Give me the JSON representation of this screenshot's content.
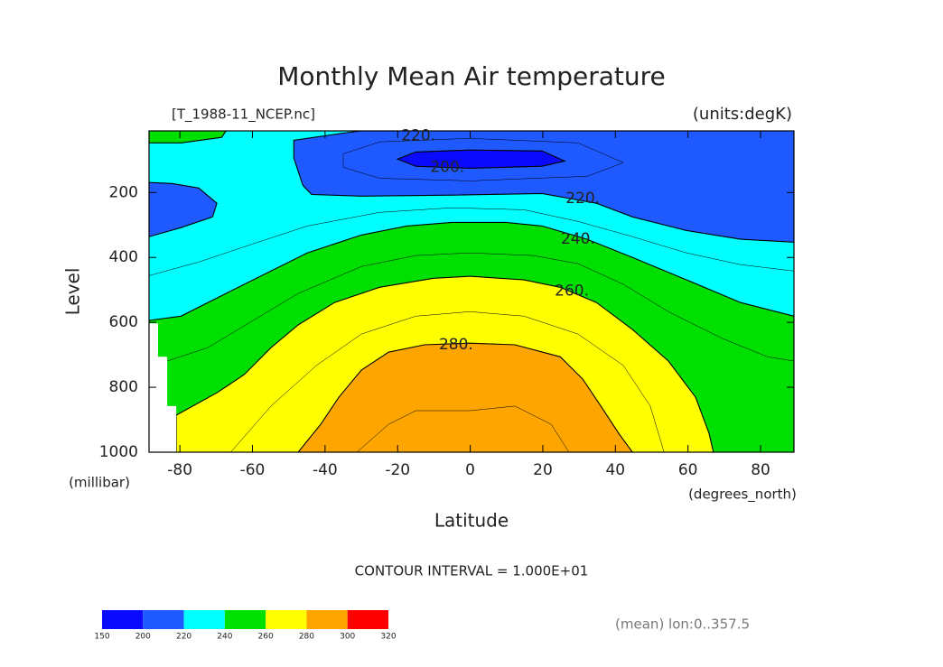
{
  "chart_data": {
    "type": "contour",
    "title": "Monthly Mean Air temperature",
    "subtitle_left": "[T_1988-11_NCEP.nc]",
    "subtitle_right": "(units:degK)",
    "ylabel": "Level",
    "yunits": "(millibar)",
    "xlabel": "Latitude",
    "xunits": "(degrees_north)",
    "contour_interval": "CONTOUR INTERVAL = 1.000E+01",
    "footnote": "(mean) lon:0..357.5",
    "xlim": [
      -88.5,
      89.2
    ],
    "ylim": [
      1000,
      10
    ],
    "xticks": [
      -80,
      -60,
      -40,
      -20,
      0,
      20,
      40,
      60,
      80
    ],
    "yticks": [
      200,
      400,
      600,
      800,
      1000
    ],
    "levels": [
      150,
      200,
      220,
      240,
      260,
      280,
      300,
      320
    ],
    "colors": [
      "#0a0aff",
      "#1e5aff",
      "#00ffff",
      "#00e000",
      "#ffff00",
      "#ffa500",
      "#ff0000"
    ],
    "regions": [
      {
        "level": 220,
        "x": [
          -88.5,
          89.2,
          89.2,
          -88.5
        ],
        "y": [
          10,
          10,
          1000,
          1000
        ]
      },
      {
        "level": 240,
        "x": [
          -88.5,
          -67.3,
          -68.5,
          -79.7,
          -88.5
        ],
        "y": [
          10,
          10,
          30,
          47,
          47
        ]
      },
      {
        "level": 200,
        "x": [
          -48.6,
          -35.0,
          -30.0,
          89.2,
          89.2,
          74.5,
          59.6,
          44.7,
          34.8,
          19.8,
          -5.1,
          -30.0,
          -43.7,
          -46.1,
          -48.6
        ],
        "y": [
          39,
          17,
          10,
          10,
          353,
          344,
          317,
          275,
          233,
          203,
          208,
          211,
          206,
          178,
          94
        ]
      },
      {
        "level": 200,
        "x": [
          -88.5,
          -82.2,
          -74.8,
          -69.8,
          -71.0,
          -79.7,
          -88.5
        ],
        "y": [
          169,
          172,
          186,
          233,
          275,
          308,
          336
        ]
      },
      {
        "level": 150,
        "x": [
          -20.0,
          -15.0,
          -0.1,
          19.8,
          26.0,
          19.8,
          -0.1,
          -15.0
        ],
        "y": [
          97,
          75,
          69,
          72,
          103,
          119,
          125,
          119
        ]
      },
      {
        "level": 240,
        "x": [
          -88.5,
          -79.7,
          -72.3,
          -64.8,
          -54.9,
          -44.9,
          -30.0,
          -17.5,
          -5.1,
          9.8,
          19.8,
          32.2,
          44.7,
          59.6,
          74.5,
          89.2,
          89.2,
          -88.5
        ],
        "y": [
          594,
          581,
          539,
          497,
          442,
          386,
          331,
          303,
          292,
          292,
          303,
          344,
          400,
          469,
          539,
          581,
          1000,
          1000
        ]
      },
      {
        "level": 260,
        "x": [
          -81.0,
          -69.8,
          -62.3,
          -54.9,
          -47.4,
          -37.4,
          -25.0,
          -10.1,
          -0.1,
          14.8,
          24.8,
          34.8,
          44.7,
          54.6,
          62.1,
          65.8,
          67.0,
          -81.0
        ],
        "y": [
          886,
          817,
          761,
          678,
          608,
          539,
          492,
          464,
          458,
          469,
          492,
          539,
          622,
          719,
          831,
          942,
          1000,
          1000
        ]
      },
      {
        "level": 280,
        "x": [
          -47.4,
          -41.2,
          -36.2,
          -30.0,
          -22.5,
          -12.6,
          -0.1,
          12.3,
          24.8,
          31.0,
          36.0,
          40.9,
          44.7
        ],
        "y": [
          1000,
          914,
          831,
          747,
          692,
          669,
          664,
          669,
          706,
          775,
          858,
          942,
          1000
        ]
      }
    ],
    "masked": {
      "x": [
        -88.5,
        -86.0,
        -86.0,
        -83.5,
        -83.5,
        -81.0,
        -81.0,
        -88.5
      ],
      "y": [
        603,
        603,
        706,
        706,
        858,
        858,
        1000,
        1000
      ]
    },
    "lines": [
      {
        "level": 210,
        "x": [
          -35.0,
          -25.0,
          -0.1,
          29.7,
          42.2,
          32.2,
          -0.1,
          -25.0,
          -35.0,
          -35.0
        ],
        "y": [
          81,
          44,
          33,
          47,
          108,
          150,
          164,
          156,
          122,
          81
        ]
      },
      {
        "level": 230,
        "x": [
          -88.5,
          -74.8,
          -59.8,
          -44.9,
          -25.0,
          -5.1,
          14.8,
          29.7,
          44.7,
          59.6,
          74.5,
          89.2
        ],
        "y": [
          456,
          414,
          358,
          303,
          261,
          247,
          253,
          289,
          336,
          386,
          422,
          442
        ]
      },
      {
        "level": 250,
        "x": [
          -83.5,
          -72.3,
          -59.8,
          -47.4,
          -30.0,
          -15.0,
          -0.1,
          17.3,
          29.7,
          42.2,
          54.6,
          69.5,
          81.9,
          89.2
        ],
        "y": [
          719,
          678,
          594,
          511,
          428,
          394,
          386,
          394,
          419,
          483,
          567,
          650,
          706,
          719
        ]
      },
      {
        "level": 270,
        "x": [
          -66.0,
          -54.9,
          -42.4,
          -30.0,
          -15.0,
          -0.1,
          14.8,
          29.7,
          42.2,
          49.6,
          53.4
        ],
        "y": [
          1000,
          858,
          733,
          636,
          581,
          567,
          581,
          636,
          733,
          858,
          1000
        ]
      },
      {
        "level": 290,
        "x": [
          -31.2,
          -22.5,
          -15.0,
          -0.1,
          12.3,
          22.3,
          27.2
        ],
        "y": [
          1000,
          914,
          872,
          872,
          858,
          914,
          1000
        ]
      }
    ],
    "contour_labels": [
      {
        "value": 220,
        "label": "220.",
        "x": -14.3,
        "y": 25
      },
      {
        "value": 200,
        "label": "200.",
        "x": -6.3,
        "y": 122
      },
      {
        "value": 220,
        "label": "220.",
        "x": 31.0,
        "y": 219
      },
      {
        "value": 240,
        "label": "240.",
        "x": 29.7,
        "y": 344
      },
      {
        "value": 260,
        "label": "260.",
        "x": 28.0,
        "y": 503
      },
      {
        "value": 280,
        "label": "280.",
        "x": -3.9,
        "y": 669
      }
    ]
  }
}
